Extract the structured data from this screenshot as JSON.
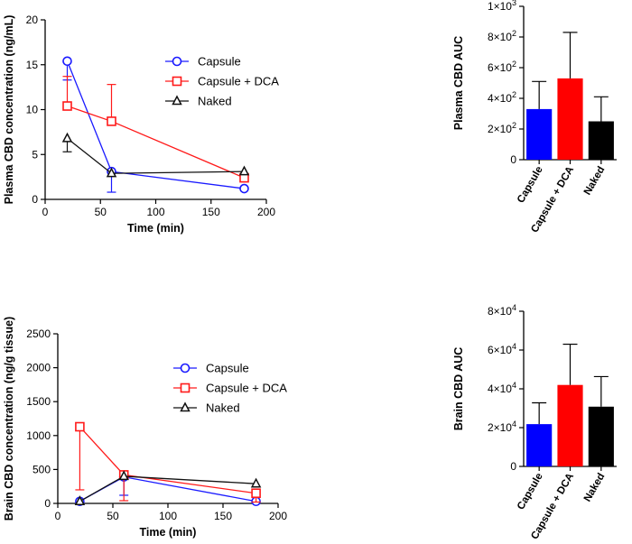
{
  "chart_data": [
    {
      "type": "line",
      "id": "plasma_time",
      "xlabel": "Time (min)",
      "ylabel": "Plasma CBD concentration (ng/mL)",
      "xlim": [
        0,
        200
      ],
      "ylim": [
        0,
        20
      ],
      "xticks": [
        "0",
        "50",
        "100",
        "150",
        "200"
      ],
      "yticks": [
        "0",
        "5",
        "10",
        "15",
        "20"
      ],
      "x": [
        20,
        60,
        180
      ],
      "series": [
        {
          "name": "Capsule",
          "color": "#1a1aff",
          "marker": "circle",
          "values": [
            15.4,
            3.1,
            1.2
          ],
          "err": [
            2.1,
            2.3,
            0.0
          ],
          "err_dir": [
            "down",
            "down",
            "none"
          ]
        },
        {
          "name": "Capsule + DCA",
          "color": "#ff1a1a",
          "marker": "square",
          "values": [
            10.4,
            8.7,
            2.4
          ],
          "err": [
            3.3,
            4.1,
            0.0
          ],
          "err_dir": [
            "up",
            "up",
            "none"
          ]
        },
        {
          "name": "Naked",
          "color": "#111111",
          "marker": "triangle",
          "values": [
            6.8,
            2.9,
            3.1
          ],
          "err": [
            1.5,
            0.0,
            0.0
          ],
          "err_dir": [
            "down",
            "none",
            "none"
          ]
        }
      ],
      "legend": "top-right"
    },
    {
      "type": "bar",
      "id": "plasma_auc",
      "ylabel": "Plasma CBD AUC",
      "categories": [
        "Capsule",
        "Capsule + DCA",
        "Naked"
      ],
      "values": [
        330,
        530,
        250
      ],
      "errors": [
        180,
        300,
        160
      ],
      "colors": [
        "#0000ff",
        "#ff0000",
        "#000000"
      ],
      "ylim": [
        0,
        1000
      ],
      "yticks": [
        {
          "m": "0",
          "e": ""
        },
        {
          "m": "2×10",
          "e": "2"
        },
        {
          "m": "4×10",
          "e": "2"
        },
        {
          "m": "6×10",
          "e": "2"
        },
        {
          "m": "8×10",
          "e": "2"
        },
        {
          "m": "1×10",
          "e": "3"
        }
      ]
    },
    {
      "type": "line",
      "id": "brain_time",
      "xlabel": "Time (min)",
      "ylabel": "Brain CBD concentration (ng/g tissue)",
      "xlim": [
        0,
        200
      ],
      "ylim": [
        0,
        2500
      ],
      "xticks": [
        "0",
        "50",
        "100",
        "150",
        "200"
      ],
      "yticks": [
        "0",
        "500",
        "1000",
        "1500",
        "2000",
        "2500"
      ],
      "x": [
        20,
        60,
        180
      ],
      "series": [
        {
          "name": "Capsule",
          "color": "#1a1aff",
          "marker": "circle",
          "values": [
            30,
            390,
            30
          ],
          "err": [
            0,
            270,
            0
          ],
          "err_dir": [
            "none",
            "down",
            "none"
          ]
        },
        {
          "name": "Capsule + DCA",
          "color": "#ff1a1a",
          "marker": "square",
          "values": [
            1130,
            420,
            150
          ],
          "err": [
            930,
            380,
            130
          ],
          "err_dir": [
            "down",
            "down",
            "down"
          ]
        },
        {
          "name": "Naked",
          "color": "#111111",
          "marker": "triangle",
          "values": [
            30,
            400,
            290
          ],
          "err": [
            0,
            0,
            0
          ],
          "err_dir": [
            "none",
            "none",
            "none"
          ]
        }
      ],
      "legend": "top-right"
    },
    {
      "type": "bar",
      "id": "brain_auc",
      "ylabel": "Brain CBD AUC",
      "categories": [
        "Capsule",
        "Capsule + DCA",
        "Naked"
      ],
      "values": [
        21800,
        42000,
        30800
      ],
      "errors": [
        11000,
        21000,
        15500
      ],
      "colors": [
        "#0000ff",
        "#ff0000",
        "#000000"
      ],
      "ylim": [
        0,
        80000
      ],
      "yticks": [
        {
          "m": "0",
          "e": ""
        },
        {
          "m": "2×10",
          "e": "4"
        },
        {
          "m": "4×10",
          "e": "4"
        },
        {
          "m": "6×10",
          "e": "4"
        },
        {
          "m": "8×10",
          "e": "4"
        }
      ]
    }
  ]
}
